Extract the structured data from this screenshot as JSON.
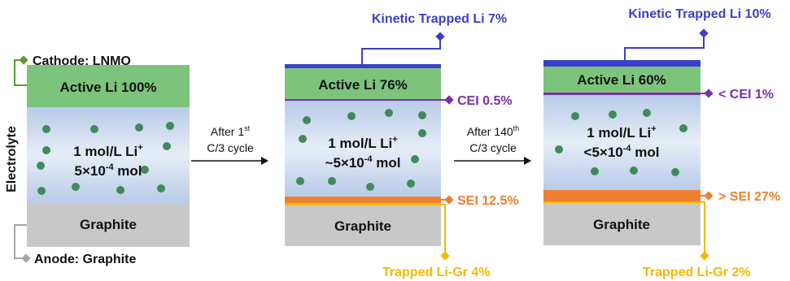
{
  "colors": {
    "active_green": "#7cc47c",
    "electrolyte_blue": "#c9d8ee",
    "graphite_gray": "#c8c8c8",
    "li_dot": "#3f8a5a",
    "cei_purple": "#7b2fa8",
    "sei_orange": "#ee7f32",
    "trapped_gr_yellow": "#f5b800",
    "kinetic_blue": "#3b3fc7",
    "cathode_green": "#5a9a3a",
    "anode_gray": "#a6a6a6"
  },
  "panel1": {
    "cathode_label": "Cathode: LNMO",
    "active_li": "Active Li 100%",
    "electrolyte_label": "Electrolyte",
    "conc_line1": "1 mol/L Li",
    "conc_sup": "+",
    "conc_line2_pre": "5×10",
    "conc_line2_exp": "-4",
    "conc_line2_post": " mol",
    "graphite": "Graphite",
    "anode_label": "Anode: Graphite"
  },
  "arrow1": {
    "line1_pre": "After 1",
    "line1_sup": "st",
    "line2": "C/3 cycle"
  },
  "panel2": {
    "kinetic_label": "Kinetic Trapped Li 7%",
    "active_li": "Active Li 76%",
    "cei_label": "CEI 0.5%",
    "conc_line1": "1 mol/L Li",
    "conc_sup": "+",
    "conc_line2_pre": "~5×10",
    "conc_line2_exp": "-4",
    "conc_line2_post": " mol",
    "sei_label": "SEI 12.5%",
    "graphite": "Graphite",
    "trapped_label": "Trapped Li-Gr 4%"
  },
  "arrow2": {
    "line1_pre": "After 140",
    "line1_sup": "th",
    "line2": "C/3 cycle"
  },
  "panel3": {
    "kinetic_label": "Kinetic Trapped Li 10%",
    "active_li": "Active Li 60%",
    "cei_label": "< CEI 1%",
    "conc_line1": "1 mol/L Li",
    "conc_sup": "+",
    "conc_line2_pre": "<5×10",
    "conc_line2_exp": "-4",
    "conc_line2_post": " mol",
    "sei_label": "> SEI 27%",
    "graphite": "Graphite",
    "trapped_label": "Trapped Li-Gr 2%"
  }
}
